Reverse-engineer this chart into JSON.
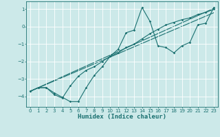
{
  "xlabel": "Humidex (Indice chaleur)",
  "background_color": "#cce9e9",
  "line_color": "#1a7070",
  "grid_color": "#ffffff",
  "xlim": [
    -0.5,
    23.5
  ],
  "ylim": [
    -4.6,
    1.45
  ],
  "xticks": [
    0,
    1,
    2,
    3,
    4,
    5,
    6,
    7,
    8,
    9,
    10,
    11,
    12,
    13,
    14,
    15,
    16,
    17,
    18,
    19,
    20,
    21,
    22,
    23
  ],
  "yticks": [
    -4,
    -3,
    -2,
    -1,
    0,
    1
  ],
  "line1_x": [
    0,
    1,
    2,
    3,
    4,
    5,
    6,
    7,
    8,
    9,
    10,
    11,
    12,
    13,
    14,
    15,
    16,
    17,
    18,
    19,
    20,
    21,
    22,
    23
  ],
  "line1_y": [
    -3.7,
    -3.5,
    -3.5,
    -3.8,
    -4.05,
    -4.3,
    -4.3,
    -3.5,
    -2.8,
    -2.3,
    -1.7,
    -1.3,
    -0.35,
    -0.2,
    1.1,
    0.3,
    -1.1,
    -1.2,
    -1.5,
    -1.1,
    -0.9,
    0.1,
    0.2,
    1.1
  ],
  "line2_x": [
    0,
    1,
    2,
    3,
    4,
    5,
    6,
    7,
    8,
    9,
    10,
    11,
    12,
    13,
    14,
    15,
    16,
    17,
    18,
    19,
    20,
    21,
    22,
    23
  ],
  "line2_y": [
    -3.7,
    -3.5,
    -3.5,
    -3.9,
    -4.1,
    -3.4,
    -2.85,
    -2.5,
    -2.3,
    -2.0,
    -1.7,
    -1.5,
    -1.2,
    -1.0,
    -0.7,
    -0.4,
    -0.15,
    0.1,
    0.25,
    0.4,
    0.5,
    0.7,
    0.82,
    1.0
  ],
  "line3_x": [
    0,
    23
  ],
  "line3_y": [
    -3.7,
    1.05
  ],
  "line4_x": [
    0,
    23
  ],
  "line4_y": [
    -3.7,
    0.8
  ],
  "lw": 0.8,
  "ms": 1.8,
  "tick_fontsize": 5.0,
  "xlabel_fontsize": 6.5
}
